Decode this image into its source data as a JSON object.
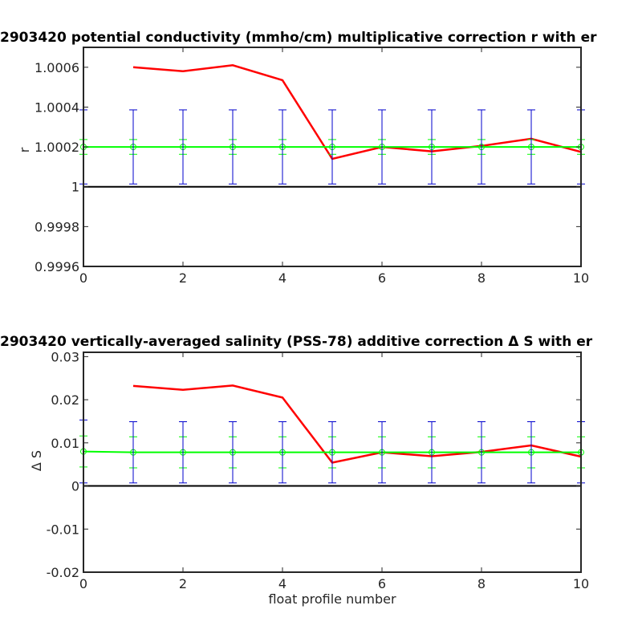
{
  "chart_data": [
    {
      "type": "line",
      "title": "2903420 potential conductivity (mmho/cm) multiplicative correction r with er",
      "xlabel": "",
      "ylabel": "r",
      "xlim": [
        0,
        10
      ],
      "ylim": [
        0.9996,
        1.0007
      ],
      "xticks": [
        0,
        2,
        4,
        6,
        8,
        10
      ],
      "xtick_labels": [
        "0",
        "2",
        "4",
        "6",
        "8",
        "10"
      ],
      "yticks": [
        0.9996,
        0.9998,
        1.0,
        1.0002,
        1.0004,
        1.0006
      ],
      "ytick_labels": [
        "0.9996",
        "0.9998",
        "1",
        "1.0002",
        "1.0004",
        "1.0006"
      ],
      "reference_line": {
        "y": 1.0,
        "color": "#000000"
      },
      "series": [
        {
          "color": "#ff0000",
          "style": "line",
          "x": [
            1,
            2,
            3,
            4,
            5,
            6,
            7,
            8,
            9,
            10
          ],
          "y": [
            1.0006,
            1.00058,
            1.00061,
            1.000535,
            1.00014,
            1.0002,
            1.000178,
            1.000205,
            1.000241,
            1.000175
          ]
        },
        {
          "color": "#00ff00",
          "style": "line-circles-errorbars",
          "x": [
            0,
            1,
            2,
            3,
            4,
            5,
            6,
            7,
            8,
            9,
            10
          ],
          "y": [
            1.0002,
            1.0002,
            1.0002,
            1.0002,
            1.0002,
            1.0002,
            1.0002,
            1.0002,
            1.0002,
            1.0002,
            1.0002
          ],
          "err": [
            3.7e-05,
            3.7e-05,
            3.7e-05,
            3.7e-05,
            3.7e-05,
            3.7e-05,
            3.7e-05,
            3.7e-05,
            3.7e-05,
            3.7e-05,
            3.7e-05
          ]
        },
        {
          "color": "#0000cc",
          "style": "errorbars",
          "x": [
            0,
            1,
            2,
            3,
            4,
            5,
            6,
            7,
            8,
            9,
            10
          ],
          "y": [
            1.0002,
            1.0002,
            1.0002,
            1.0002,
            1.0002,
            1.0002,
            1.0002,
            1.0002,
            1.0002,
            1.0002,
            1.0002
          ],
          "err": [
            0.000186,
            0.000186,
            0.000186,
            0.000186,
            0.000186,
            0.000186,
            0.000186,
            0.000186,
            0.000186,
            0.000186,
            0.000186
          ]
        }
      ]
    },
    {
      "type": "line",
      "title": "2903420 vertically-averaged salinity (PSS-78) additive correction Δ S with er",
      "xlabel": "float profile number",
      "ylabel": "Δ S",
      "xlim": [
        0,
        10
      ],
      "ylim": [
        -0.02,
        0.031
      ],
      "xticks": [
        0,
        2,
        4,
        6,
        8,
        10
      ],
      "xtick_labels": [
        "0",
        "2",
        "4",
        "6",
        "8",
        "10"
      ],
      "yticks": [
        -0.02,
        -0.01,
        0,
        0.01,
        0.02,
        0.03
      ],
      "ytick_labels": [
        "-0.02",
        "-0.01",
        "0",
        "0.01",
        "0.02",
        "0.03"
      ],
      "reference_line": {
        "y": 0,
        "color": "#000000"
      },
      "series": [
        {
          "color": "#ff0000",
          "style": "line",
          "x": [
            1,
            2,
            3,
            4,
            5,
            6,
            7,
            8,
            9,
            10
          ],
          "y": [
            0.0232,
            0.0223,
            0.0233,
            0.0205,
            0.0054,
            0.0078,
            0.0069,
            0.0079,
            0.0094,
            0.0068
          ]
        },
        {
          "color": "#00ff00",
          "style": "line-circles-errorbars",
          "x": [
            0,
            1,
            2,
            3,
            4,
            5,
            6,
            7,
            8,
            9,
            10
          ],
          "y": [
            0.008,
            0.0078,
            0.0078,
            0.0078,
            0.0078,
            0.0078,
            0.0078,
            0.0078,
            0.0078,
            0.0078,
            0.0078
          ],
          "err": [
            0.0036,
            0.0036,
            0.0036,
            0.0036,
            0.0036,
            0.0036,
            0.0036,
            0.0036,
            0.0036,
            0.0036,
            0.0036
          ]
        },
        {
          "color": "#0000cc",
          "style": "errorbars",
          "x": [
            0,
            1,
            2,
            3,
            4,
            5,
            6,
            7,
            8,
            9,
            10
          ],
          "y": [
            0.008,
            0.0078,
            0.0078,
            0.0078,
            0.0078,
            0.0078,
            0.0078,
            0.0078,
            0.0078,
            0.0078,
            0.0078
          ],
          "err": [
            0.0073,
            0.0071,
            0.0071,
            0.0071,
            0.0071,
            0.0071,
            0.0071,
            0.0071,
            0.0071,
            0.0071,
            0.0071
          ]
        }
      ]
    }
  ]
}
